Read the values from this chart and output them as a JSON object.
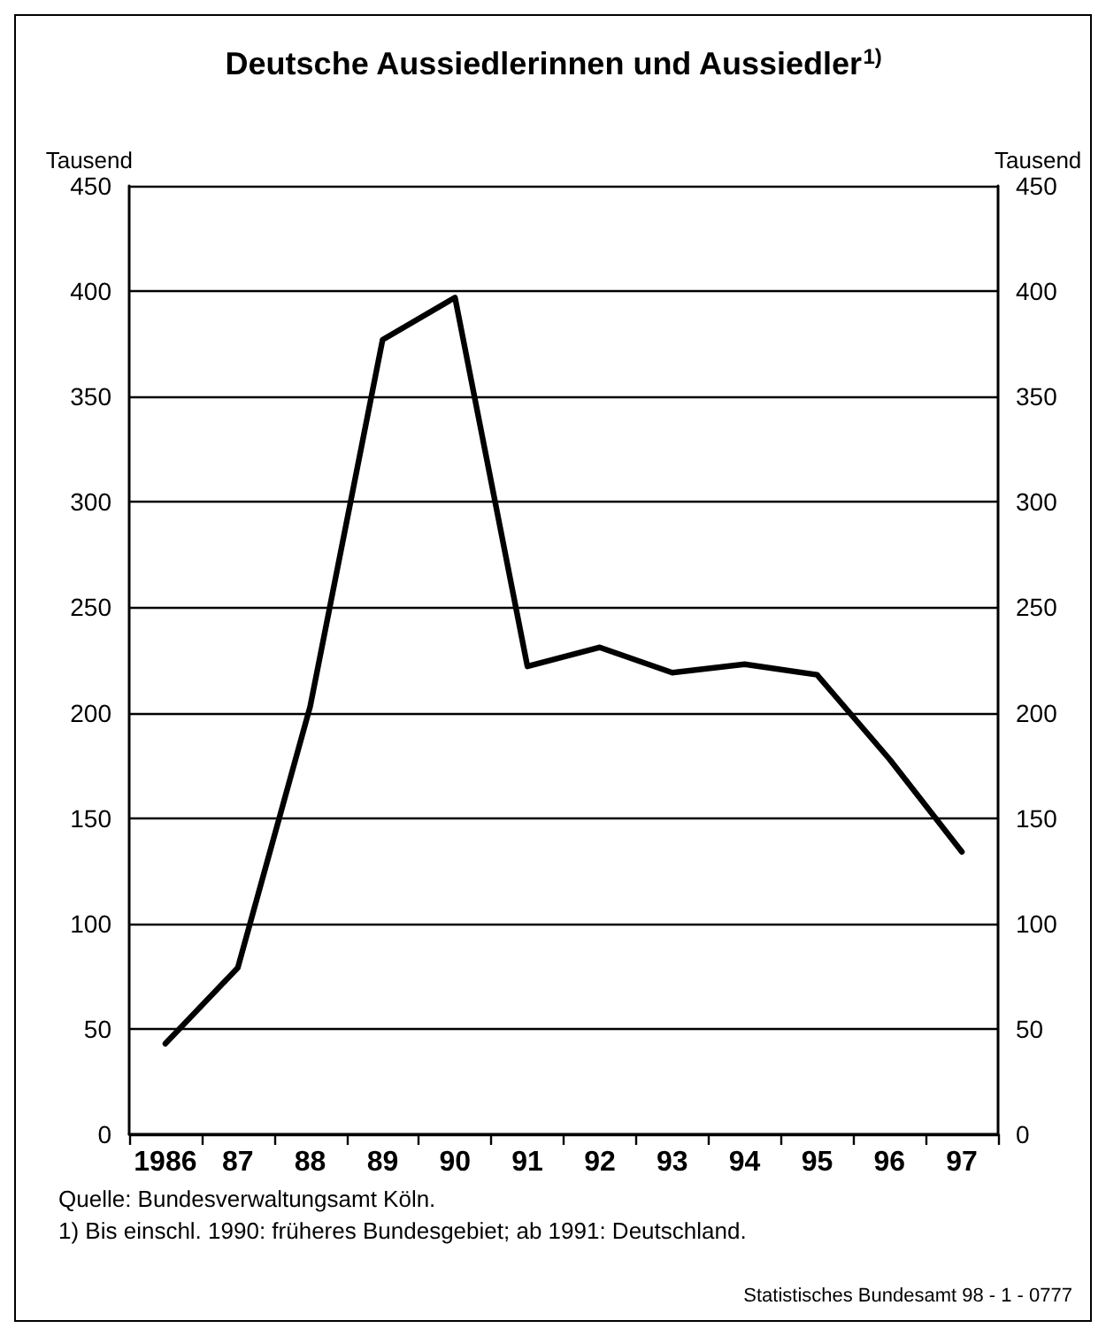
{
  "chart_data": {
    "type": "line",
    "title": "Deutsche Aussiedlerinnen und Aussiedler$^{1)}$",
    "ylabel": "Tausend",
    "y2label": "Tausend",
    "categories": [
      "1986",
      "87",
      "88",
      "89",
      "90",
      "91",
      "92",
      "93",
      "94",
      "95",
      "96",
      "97"
    ],
    "series": [
      {
        "color": "#000000",
        "values": [
          43,
          79,
          203,
          377,
          397,
          222,
          231,
          219,
          223,
          218,
          178,
          134
        ]
      }
    ],
    "ylim": [
      0,
      450
    ],
    "yticks": [
      0,
      50,
      100,
      150,
      200,
      250,
      300,
      350,
      400,
      450
    ],
    "y2lim": [
      0,
      450
    ],
    "y2ticks": [
      0,
      50,
      100,
      150,
      200,
      250,
      300,
      350,
      400,
      450
    ],
    "grid": "y",
    "marker": "none",
    "line_style": "solid",
    "annotations": [
      "Quelle: Bundesverwaltungsamt Köln.",
      "1) Bis einschl. 1990: früheres Bundesgebiet; ab 1991: Deutschland.",
      "Statistisches Bundesamt 98 - 1 - 0777"
    ]
  }
}
